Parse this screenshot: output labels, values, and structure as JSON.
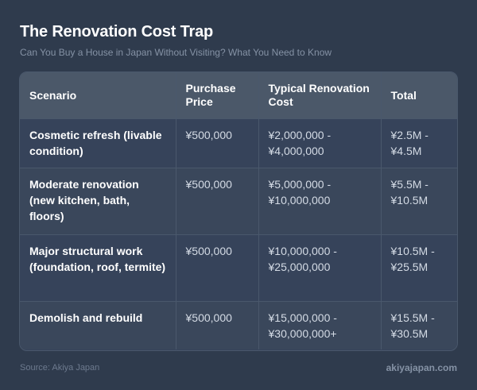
{
  "header": {
    "title": "The Renovation Cost Trap",
    "subtitle": "Can You Buy a House in Japan Without Visiting? What You Need to Know"
  },
  "table": {
    "columns": [
      "Scenario",
      "Purchase Price",
      "Typical Renovation Cost",
      "Total"
    ],
    "rows": [
      {
        "scenario": "Cosmetic refresh (livable condition)",
        "purchase": "¥500,000",
        "renovation": "¥2,000,000 - ¥4,000,000",
        "total": "¥2.5M - ¥4.5M"
      },
      {
        "scenario": "Moderate renovation (new kitchen, bath, floors)",
        "purchase": "¥500,000",
        "renovation": "¥5,000,000 - ¥10,000,000",
        "total": "¥5.5M - ¥10.5M"
      },
      {
        "scenario": "Major structural work (foundation, roof, termite)",
        "purchase": "¥500,000",
        "renovation": "¥10,000,000 - ¥25,000,000",
        "total": "¥10.5M - ¥25.5M"
      },
      {
        "scenario": "Demolish and rebuild",
        "purchase": "¥500,000",
        "renovation": "¥15,000,000 - ¥30,000,000+",
        "total": "¥15.5M - ¥30.5M"
      }
    ]
  },
  "footer": {
    "source": "Source: Akiya Japan",
    "site": "akiyajapan.com"
  }
}
